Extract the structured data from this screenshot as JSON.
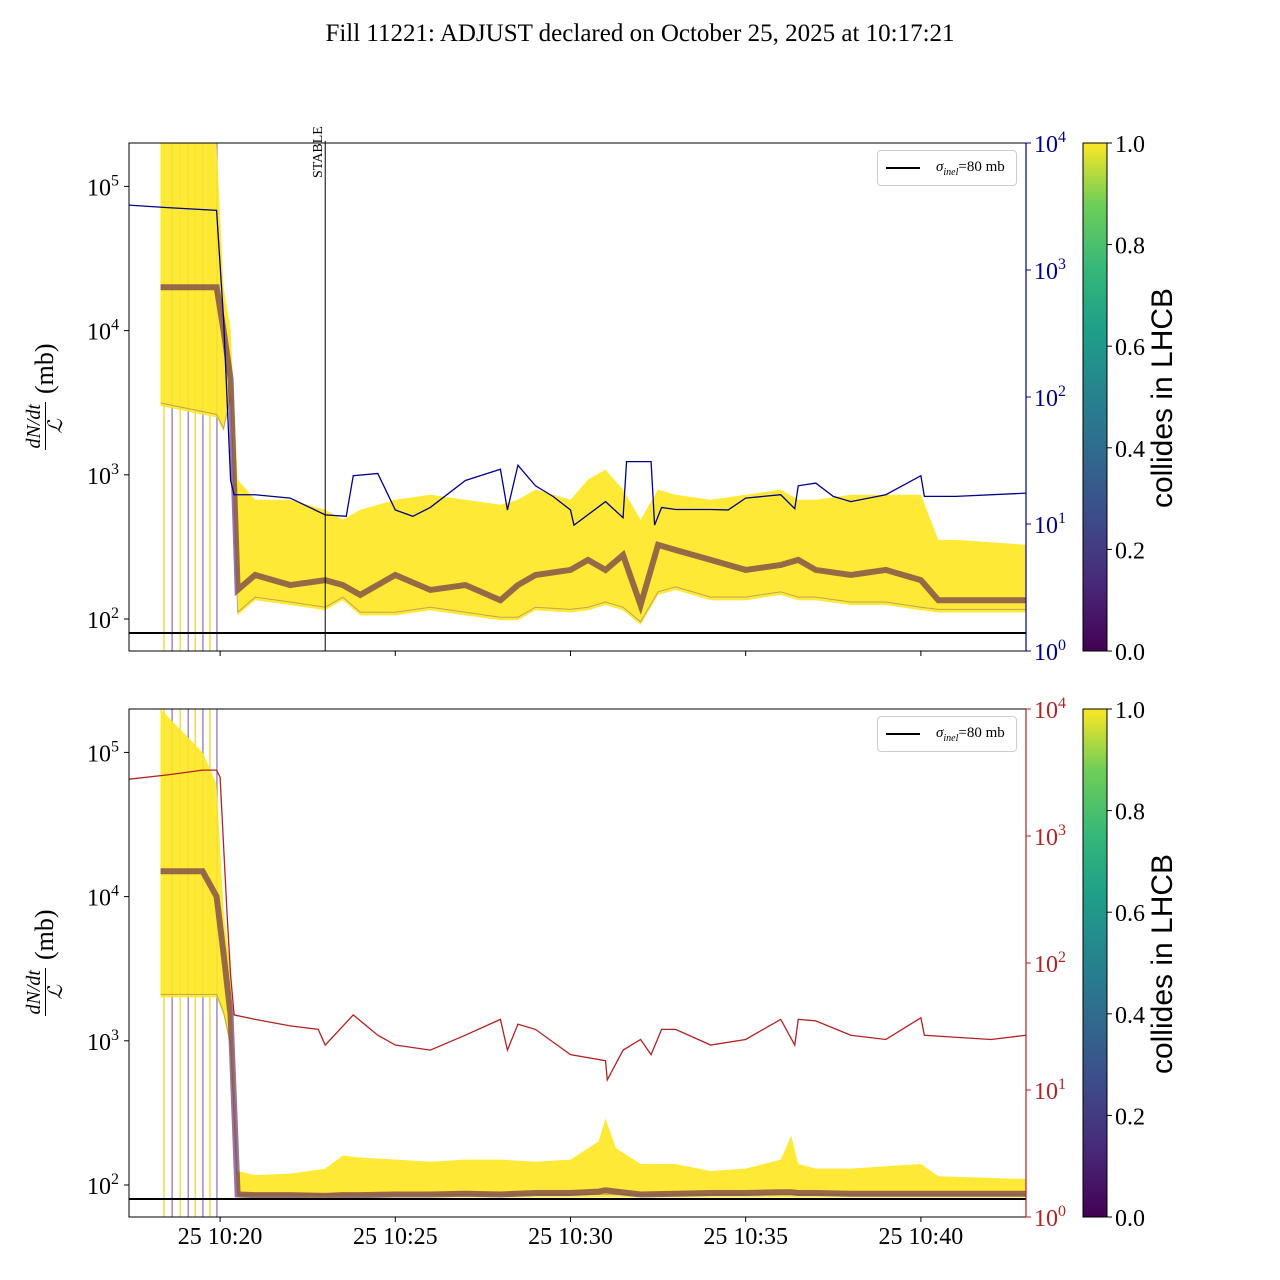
{
  "title": "Fill 11221: ADJUST declared on October 25, 2025 at 10:17:21",
  "chart_data": [
    {
      "type": "line",
      "panel": "top",
      "x_unit": "minutes after 10:00 on Oct 25",
      "xlim": [
        17.4,
        43.0
      ],
      "ylim_left": [
        60,
        200000
      ],
      "ylim_right": [
        1,
        10000
      ],
      "ylabel_num": "dN/dt",
      "ylabel_den": "ℒ",
      "ylabel_unit": "(mb)",
      "xticks": [
        {
          "value": 20,
          "label": "25 10:20"
        },
        {
          "value": 25,
          "label": "25 10:25"
        },
        {
          "value": 30,
          "label": "25 10:30"
        },
        {
          "value": 35,
          "label": "25 10:35"
        },
        {
          "value": 40,
          "label": "25 10:40"
        }
      ],
      "show_xtick_labels": false,
      "yticks_left": [
        2,
        3,
        4,
        5
      ],
      "yticks_right": [
        0,
        1,
        2,
        3,
        4
      ],
      "tick_base": "10",
      "right_axis_color": "#00008b",
      "reference_line": {
        "value": 80,
        "label_sym": "σ",
        "label_sub": "inel",
        "label_rest": "=80 mb"
      },
      "vline": {
        "value": 23.0,
        "label": "STABLE"
      },
      "spikes": [
        18.4,
        18.63,
        18.86,
        19.09,
        19.29,
        19.51,
        19.71,
        19.91
      ],
      "band": {
        "t": [
          18.3,
          19.9,
          20.1,
          20.3,
          20.5,
          21,
          22,
          23,
          23.5,
          24,
          25,
          26,
          27,
          28,
          28.5,
          29,
          30,
          30.5,
          31,
          31.5,
          32,
          32.5,
          33,
          34,
          35,
          36,
          36.5,
          37,
          38,
          39,
          40,
          40.5,
          41,
          43
        ],
        "upper": [
          200000,
          200000,
          20000,
          10260,
          927,
          671,
          671,
          572,
          488,
          572,
          671,
          728,
          671,
          620,
          671,
          789,
          671,
          927,
          1087,
          789,
          488,
          789,
          728,
          671,
          728,
          789,
          671,
          671,
          728,
          728,
          728,
          354,
          354,
          327
        ],
        "lower": [
          3000,
          2500,
          2000,
          3340,
          106,
          135,
          125,
          115,
          135,
          106,
          106,
          115,
          106,
          98,
          98,
          115,
          111,
          115,
          125,
          115,
          91,
          147,
          159,
          135,
          135,
          147,
          135,
          135,
          125,
          125,
          115,
          111,
          111,
          111
        ],
        "median": [
          20000,
          20000,
          10000,
          4600,
          159,
          202,
          172,
          186,
          172,
          147,
          202,
          159,
          172,
          135,
          172,
          202,
          219,
          257,
          219,
          278,
          125,
          327,
          301,
          257,
          219,
          237,
          257,
          219,
          202,
          219,
          186,
          135,
          135,
          135
        ]
      },
      "rate_line": {
        "t": [
          17.4,
          18.5,
          19.9,
          20.1,
          20.3,
          20.4,
          21,
          22,
          23,
          23.6,
          23.8,
          24.5,
          25,
          25.5,
          26,
          27,
          28,
          28.2,
          28.5,
          29,
          29.5,
          30,
          30.1,
          31,
          31.5,
          31.6,
          32.3,
          32.4,
          32.6,
          33,
          34,
          34.5,
          35,
          36,
          36.4,
          36.5,
          37,
          37.5,
          38,
          39,
          40,
          40.1,
          41,
          43
        ],
        "v": [
          3240,
          3100,
          2950,
          405,
          22,
          17,
          17,
          16,
          11.8,
          11.5,
          24,
          25,
          12.9,
          11.5,
          13.5,
          22,
          27,
          12.9,
          29,
          20,
          16.5,
          12.9,
          9.8,
          15,
          11.2,
          31,
          31,
          9.8,
          13.5,
          13,
          13,
          12.9,
          16,
          17,
          13.2,
          20,
          21,
          16.5,
          15,
          17,
          24,
          16.5,
          16.5,
          17.5
        ]
      },
      "colorbar": {
        "label": "collides in LHCB",
        "ticks": [
          "0.0",
          "0.2",
          "0.4",
          "0.6",
          "0.8",
          "1.0"
        ],
        "range": [
          0,
          1
        ]
      }
    },
    {
      "type": "line",
      "panel": "bottom",
      "x_unit": "minutes after 10:00 on Oct 25",
      "xlim": [
        17.4,
        43.0
      ],
      "ylim_left": [
        60,
        200000
      ],
      "ylim_right": [
        1,
        10000
      ],
      "ylabel_num": "dN/dt",
      "ylabel_den": "ℒ",
      "ylabel_unit": "(mb)",
      "xticks": [
        {
          "value": 20,
          "label": "25 10:20"
        },
        {
          "value": 25,
          "label": "25 10:25"
        },
        {
          "value": 30,
          "label": "25 10:30"
        },
        {
          "value": 35,
          "label": "25 10:35"
        },
        {
          "value": 40,
          "label": "25 10:40"
        }
      ],
      "show_xtick_labels": true,
      "yticks_left": [
        2,
        3,
        4,
        5
      ],
      "yticks_right": [
        0,
        1,
        2,
        3,
        4
      ],
      "tick_base": "10",
      "right_axis_color": "#b22222",
      "reference_line": {
        "value": 80,
        "label_sym": "σ",
        "label_sub": "inel",
        "label_rest": "=80 mb"
      },
      "spikes": [
        18.4,
        18.63,
        18.86,
        19.09,
        19.29,
        19.51,
        19.71,
        19.91
      ],
      "band": {
        "t": [
          18.3,
          19.5,
          19.9,
          20.1,
          20.3,
          20.5,
          21,
          22,
          23,
          23.5,
          24,
          25,
          26,
          27,
          28,
          29,
          30,
          30.8,
          31,
          31.3,
          32,
          33,
          34,
          35,
          36,
          36.3,
          36.5,
          37,
          38,
          39,
          40,
          40.5,
          43
        ],
        "upper": [
          200000,
          100000,
          60000,
          8000,
          3000,
          125,
          117,
          120,
          130,
          160,
          155,
          150,
          145,
          150,
          150,
          145,
          150,
          200,
          290,
          180,
          140,
          140,
          125,
          130,
          150,
          220,
          140,
          130,
          130,
          135,
          140,
          115,
          110
        ],
        "lower": [
          2000,
          2000,
          2000,
          1500,
          900,
          82,
          82,
          82,
          82,
          82,
          82,
          82,
          82,
          82,
          82,
          82,
          82,
          82,
          82,
          82,
          82,
          82,
          82,
          82,
          82,
          82,
          82,
          82,
          82,
          82,
          82,
          82,
          82
        ],
        "median": [
          15000,
          15000,
          10000,
          4000,
          1500,
          86,
          85,
          85,
          84,
          85,
          85,
          86,
          86,
          87,
          86,
          88,
          88,
          90,
          92,
          90,
          86,
          87,
          88,
          88,
          89,
          89,
          88,
          88,
          87,
          87,
          87,
          87,
          87
        ]
      },
      "rate_line": {
        "t": [
          17.4,
          18.5,
          19.5,
          19.9,
          20.0,
          20.2,
          20.3,
          20.4,
          21,
          22,
          22.8,
          23,
          23.8,
          24.5,
          25,
          26,
          27,
          28,
          28.2,
          28.5,
          29,
          30,
          31,
          31.05,
          31.5,
          32,
          32.3,
          32.6,
          33,
          34,
          35,
          36,
          36.4,
          36.5,
          37,
          38,
          39,
          40,
          40.1,
          42,
          43
        ],
        "v": [
          2800,
          3030,
          3300,
          3300,
          2900,
          240,
          80,
          39,
          36,
          32,
          30,
          22.6,
          39,
          27,
          22.6,
          20.6,
          27,
          36,
          20.6,
          33,
          30,
          19,
          17,
          12,
          20.6,
          25,
          19,
          30,
          30,
          22.6,
          25,
          36,
          22.6,
          36,
          35,
          27,
          25,
          37,
          27,
          25,
          27
        ]
      },
      "colorbar": {
        "label": "collides in LHCB",
        "ticks": [
          "0.0",
          "0.2",
          "0.4",
          "0.6",
          "0.8",
          "1.0"
        ],
        "range": [
          0,
          1
        ]
      }
    }
  ]
}
